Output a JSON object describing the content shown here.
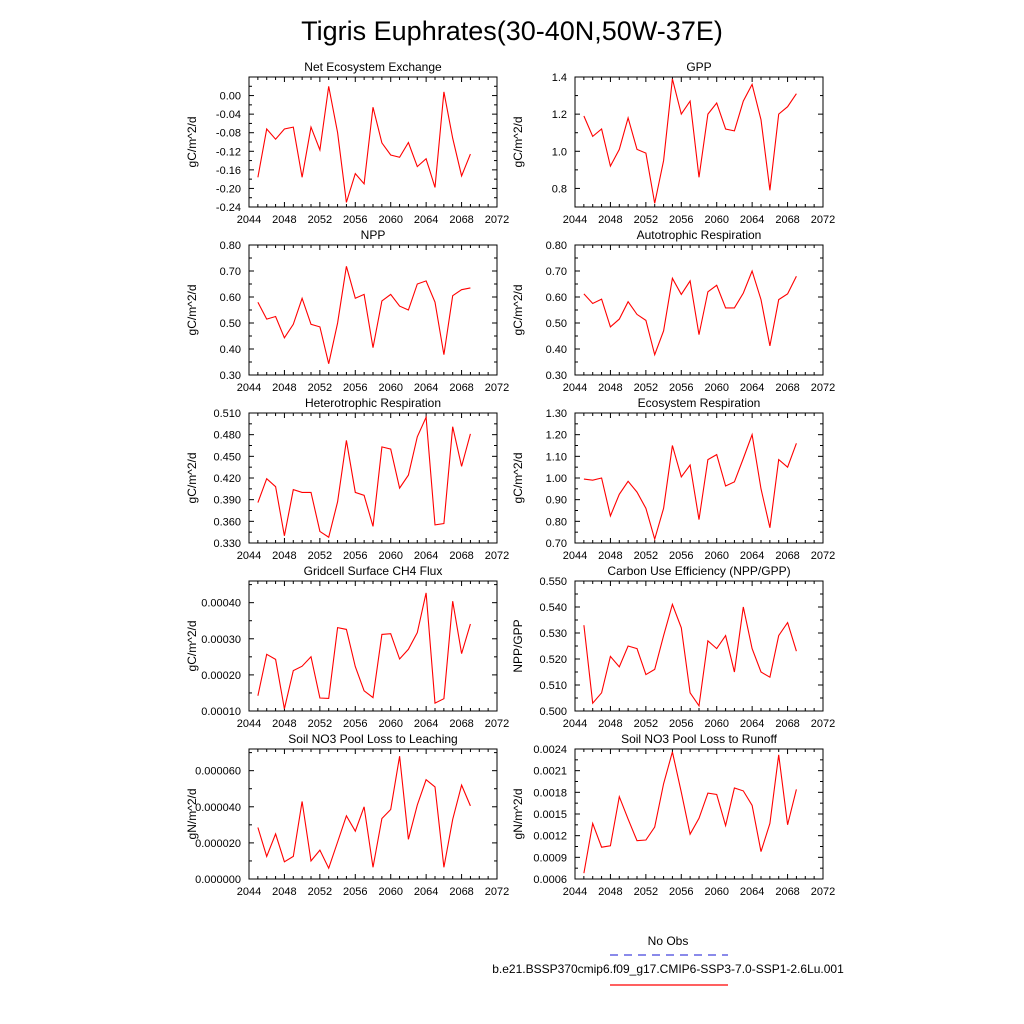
{
  "title": "Tigris Euphrates(30-40N,50W-37E)",
  "colors": {
    "model_line": "#ff0000",
    "obs_line": "#4444dd",
    "axes": "#000000",
    "background": "#ffffff"
  },
  "legend": {
    "obs_label": "No Obs",
    "model_label": "b.e21.BSSP370cmip6.f09_g17.CMIP6-SSP3-7.0-SSP1-2.6Lu.001",
    "placement": "bottom-right"
  },
  "chart_data": [
    {
      "type": "line",
      "title": "Net Ecosystem Exchange",
      "ylabel": "gC/m^2/d",
      "xlabel": "",
      "xlim": [
        2044,
        2072
      ],
      "ylim": [
        -0.24,
        0.04
      ],
      "xticks": [
        2044,
        2048,
        2052,
        2056,
        2060,
        2064,
        2068,
        2072
      ],
      "yticks": [
        -0.24,
        -0.2,
        -0.16,
        -0.12,
        -0.08,
        -0.04,
        0.0
      ],
      "yticklabels": [
        "-0.24",
        "-0.20",
        "-0.16",
        "-0.12",
        "-0.08",
        "-0.04",
        "0.00"
      ],
      "grid": false,
      "x": [
        2045,
        2046,
        2047,
        2048,
        2049,
        2050,
        2051,
        2052,
        2053,
        2054,
        2055,
        2056,
        2057,
        2058,
        2059,
        2060,
        2061,
        2062,
        2063,
        2064,
        2065,
        2066,
        2067,
        2068,
        2069
      ],
      "values": [
        -0.176,
        -0.072,
        -0.094,
        -0.072,
        -0.068,
        -0.176,
        -0.068,
        -0.117,
        0.02,
        -0.08,
        -0.23,
        -0.168,
        -0.19,
        -0.025,
        -0.102,
        -0.128,
        -0.133,
        -0.101,
        -0.153,
        -0.136,
        -0.198,
        0.008,
        -0.092,
        -0.173,
        -0.126
      ]
    },
    {
      "type": "line",
      "title": "GPP",
      "ylabel": "gC/m^2/d",
      "xlabel": "",
      "xlim": [
        2044,
        2072
      ],
      "ylim": [
        0.7,
        1.4
      ],
      "xticks": [
        2044,
        2048,
        2052,
        2056,
        2060,
        2064,
        2068,
        2072
      ],
      "yticks": [
        0.8,
        1.0,
        1.2,
        1.4
      ],
      "yticklabels": [
        "0.8",
        "1.0",
        "1.2",
        "1.4"
      ],
      "grid": false,
      "x": [
        2045,
        2046,
        2047,
        2048,
        2049,
        2050,
        2051,
        2052,
        2053,
        2054,
        2055,
        2056,
        2057,
        2058,
        2059,
        2060,
        2061,
        2062,
        2063,
        2064,
        2065,
        2066,
        2067,
        2068,
        2069
      ],
      "values": [
        1.19,
        1.08,
        1.12,
        0.92,
        1.01,
        1.18,
        1.01,
        0.99,
        0.72,
        0.95,
        1.39,
        1.2,
        1.27,
        0.86,
        1.2,
        1.26,
        1.12,
        1.11,
        1.27,
        1.36,
        1.17,
        0.79,
        1.2,
        1.24,
        1.31
      ]
    },
    {
      "type": "line",
      "title": "NPP",
      "ylabel": "gC/m^2/d",
      "xlabel": "",
      "xlim": [
        2044,
        2072
      ],
      "ylim": [
        0.3,
        0.8
      ],
      "xticks": [
        2044,
        2048,
        2052,
        2056,
        2060,
        2064,
        2068,
        2072
      ],
      "yticks": [
        0.3,
        0.4,
        0.5,
        0.6,
        0.7,
        0.8
      ],
      "yticklabels": [
        "0.30",
        "0.40",
        "0.50",
        "0.60",
        "0.70",
        "0.80"
      ],
      "grid": false,
      "x": [
        2045,
        2046,
        2047,
        2048,
        2049,
        2050,
        2051,
        2052,
        2053,
        2054,
        2055,
        2056,
        2057,
        2058,
        2059,
        2060,
        2061,
        2062,
        2063,
        2064,
        2065,
        2066,
        2067,
        2068,
        2069
      ],
      "values": [
        0.58,
        0.515,
        0.525,
        0.443,
        0.495,
        0.595,
        0.495,
        0.485,
        0.343,
        0.5,
        0.718,
        0.595,
        0.61,
        0.405,
        0.585,
        0.61,
        0.565,
        0.55,
        0.65,
        0.662,
        0.58,
        0.378,
        0.605,
        0.628,
        0.635
      ]
    },
    {
      "type": "line",
      "title": "Autotrophic Respiration",
      "ylabel": "gC/m^2/d",
      "xlabel": "",
      "xlim": [
        2044,
        2072
      ],
      "ylim": [
        0.3,
        0.8
      ],
      "xticks": [
        2044,
        2048,
        2052,
        2056,
        2060,
        2064,
        2068,
        2072
      ],
      "yticks": [
        0.3,
        0.4,
        0.5,
        0.6,
        0.7,
        0.8
      ],
      "yticklabels": [
        "0.30",
        "0.40",
        "0.50",
        "0.60",
        "0.70",
        "0.80"
      ],
      "grid": false,
      "x": [
        2045,
        2046,
        2047,
        2048,
        2049,
        2050,
        2051,
        2052,
        2053,
        2054,
        2055,
        2056,
        2057,
        2058,
        2059,
        2060,
        2061,
        2062,
        2063,
        2064,
        2065,
        2066,
        2067,
        2068,
        2069
      ],
      "values": [
        0.612,
        0.575,
        0.592,
        0.485,
        0.515,
        0.582,
        0.533,
        0.51,
        0.378,
        0.47,
        0.672,
        0.61,
        0.662,
        0.455,
        0.62,
        0.645,
        0.558,
        0.558,
        0.615,
        0.7,
        0.59,
        0.412,
        0.59,
        0.612,
        0.68
      ]
    },
    {
      "type": "line",
      "title": "Heterotrophic Respiration",
      "ylabel": "gC/m^2/d",
      "xlabel": "",
      "xlim": [
        2044,
        2072
      ],
      "ylim": [
        0.33,
        0.51
      ],
      "xticks": [
        2044,
        2048,
        2052,
        2056,
        2060,
        2064,
        2068,
        2072
      ],
      "yticks": [
        0.33,
        0.36,
        0.39,
        0.42,
        0.45,
        0.48,
        0.51
      ],
      "yticklabels": [
        "0.330",
        "0.360",
        "0.390",
        "0.420",
        "0.450",
        "0.480",
        "0.510"
      ],
      "grid": false,
      "x": [
        2045,
        2046,
        2047,
        2048,
        2049,
        2050,
        2051,
        2052,
        2053,
        2054,
        2055,
        2056,
        2057,
        2058,
        2059,
        2060,
        2061,
        2062,
        2063,
        2064,
        2065,
        2066,
        2067,
        2068,
        2069
      ],
      "values": [
        0.386,
        0.419,
        0.408,
        0.34,
        0.404,
        0.4,
        0.4,
        0.346,
        0.338,
        0.387,
        0.472,
        0.4,
        0.396,
        0.353,
        0.463,
        0.46,
        0.406,
        0.424,
        0.477,
        0.504,
        0.355,
        0.357,
        0.491,
        0.436,
        0.481
      ]
    },
    {
      "type": "line",
      "title": "Ecosystem Respiration",
      "ylabel": "gC/m^2/d",
      "xlabel": "",
      "xlim": [
        2044,
        2072
      ],
      "ylim": [
        0.7,
        1.3
      ],
      "xticks": [
        2044,
        2048,
        2052,
        2056,
        2060,
        2064,
        2068,
        2072
      ],
      "yticks": [
        0.7,
        0.8,
        0.9,
        1.0,
        1.1,
        1.2,
        1.3
      ],
      "yticklabels": [
        "0.70",
        "0.80",
        "0.90",
        "1.00",
        "1.10",
        "1.20",
        "1.30"
      ],
      "grid": false,
      "x": [
        2045,
        2046,
        2047,
        2048,
        2049,
        2050,
        2051,
        2052,
        2053,
        2054,
        2055,
        2056,
        2057,
        2058,
        2059,
        2060,
        2061,
        2062,
        2063,
        2064,
        2065,
        2066,
        2067,
        2068,
        2069
      ],
      "values": [
        0.995,
        0.99,
        1.0,
        0.825,
        0.925,
        0.985,
        0.935,
        0.86,
        0.718,
        0.86,
        1.15,
        1.005,
        1.06,
        0.808,
        1.085,
        1.108,
        0.963,
        0.982,
        1.09,
        1.2,
        0.95,
        0.77,
        1.085,
        1.05,
        1.16
      ]
    },
    {
      "type": "line",
      "title": "Gridcell Surface CH4 Flux",
      "ylabel": "gC/m^2/d",
      "xlabel": "",
      "xlim": [
        2044,
        2072
      ],
      "ylim": [
        0.0001,
        0.00046
      ],
      "xticks": [
        2044,
        2048,
        2052,
        2056,
        2060,
        2064,
        2068,
        2072
      ],
      "yticks": [
        0.0001,
        0.0002,
        0.0003,
        0.0004
      ],
      "yticklabels": [
        "0.00010",
        "0.00020",
        "0.00030",
        "0.00040"
      ],
      "grid": false,
      "x": [
        2045,
        2046,
        2047,
        2048,
        2049,
        2050,
        2051,
        2052,
        2053,
        2054,
        2055,
        2056,
        2057,
        2058,
        2059,
        2060,
        2061,
        2062,
        2063,
        2064,
        2065,
        2066,
        2067,
        2068,
        2069
      ],
      "values": [
        0.000142,
        0.000257,
        0.000243,
        0.000106,
        0.000212,
        0.000224,
        0.00025,
        0.000136,
        0.000135,
        0.000331,
        0.000326,
        0.000223,
        0.000156,
        0.000137,
        0.000312,
        0.000314,
        0.000244,
        0.000271,
        0.000317,
        0.000427,
        0.000122,
        0.000134,
        0.000404,
        0.000259,
        0.000341
      ]
    },
    {
      "type": "line",
      "title": "Carbon Use Efficiency (NPP/GPP)",
      "ylabel": "NPP/GPP",
      "xlabel": "",
      "xlim": [
        2044,
        2072
      ],
      "ylim": [
        0.5,
        0.55
      ],
      "xticks": [
        2044,
        2048,
        2052,
        2056,
        2060,
        2064,
        2068,
        2072
      ],
      "yticks": [
        0.5,
        0.51,
        0.52,
        0.53,
        0.54,
        0.55
      ],
      "yticklabels": [
        "0.500",
        "0.510",
        "0.520",
        "0.530",
        "0.540",
        "0.550"
      ],
      "grid": false,
      "x": [
        2045,
        2046,
        2047,
        2048,
        2049,
        2050,
        2051,
        2052,
        2053,
        2054,
        2055,
        2056,
        2057,
        2058,
        2059,
        2060,
        2061,
        2062,
        2063,
        2064,
        2065,
        2066,
        2067,
        2068,
        2069
      ],
      "values": [
        0.533,
        0.503,
        0.507,
        0.521,
        0.517,
        0.525,
        0.524,
        0.514,
        0.516,
        0.529,
        0.541,
        0.532,
        0.507,
        0.502,
        0.527,
        0.524,
        0.529,
        0.515,
        0.54,
        0.524,
        0.515,
        0.513,
        0.529,
        0.534,
        0.523
      ]
    },
    {
      "type": "line",
      "title": "Soil NO3 Pool Loss to Leaching",
      "ylabel": "gN/m^2/d",
      "xlabel": "",
      "xlim": [
        2044,
        2072
      ],
      "ylim": [
        0.0,
        7.2e-05
      ],
      "xticks": [
        2044,
        2048,
        2052,
        2056,
        2060,
        2064,
        2068,
        2072
      ],
      "yticks": [
        0.0,
        2e-05,
        4e-05,
        6e-05
      ],
      "yticklabels": [
        "0.000000",
        "0.000020",
        "0.000040",
        "0.000060"
      ],
      "grid": false,
      "x": [
        2045,
        2046,
        2047,
        2048,
        2049,
        2050,
        2051,
        2052,
        2053,
        2054,
        2055,
        2056,
        2057,
        2058,
        2059,
        2060,
        2061,
        2062,
        2063,
        2064,
        2065,
        2066,
        2067,
        2068,
        2069
      ],
      "values": [
        2.85e-05,
        1.25e-05,
        2.5e-05,
        9.5e-06,
        1.25e-05,
        4.3e-05,
        1e-05,
        1.6e-05,
        6e-06,
        2.05e-05,
        3.5e-05,
        2.65e-05,
        4e-05,
        6.5e-06,
        3.35e-05,
        3.85e-05,
        6.8e-05,
        2.2e-05,
        4.1e-05,
        5.5e-05,
        5.1e-05,
        6.5e-06,
        3.3e-05,
        5.2e-05,
        4.05e-05
      ]
    },
    {
      "type": "line",
      "title": "Soil NO3 Pool Loss to Runoff",
      "ylabel": "gN/m^2/d",
      "xlabel": "",
      "xlim": [
        2044,
        2072
      ],
      "ylim": [
        0.0006,
        0.0024
      ],
      "xticks": [
        2044,
        2048,
        2052,
        2056,
        2060,
        2064,
        2068,
        2072
      ],
      "yticks": [
        0.0006,
        0.0009,
        0.0012,
        0.0015,
        0.0018,
        0.0021,
        0.0024
      ],
      "yticklabels": [
        "0.0006",
        "0.0009",
        "0.0012",
        "0.0015",
        "0.0018",
        "0.0021",
        "0.0024"
      ],
      "grid": false,
      "x": [
        2045,
        2046,
        2047,
        2048,
        2049,
        2050,
        2051,
        2052,
        2053,
        2054,
        2055,
        2056,
        2057,
        2058,
        2059,
        2060,
        2061,
        2062,
        2063,
        2064,
        2065,
        2066,
        2067,
        2068,
        2069
      ],
      "values": [
        0.00068,
        0.00137,
        0.00104,
        0.00106,
        0.00174,
        0.00143,
        0.00113,
        0.00114,
        0.00132,
        0.00192,
        0.00236,
        0.0018,
        0.00122,
        0.00144,
        0.00179,
        0.00177,
        0.00134,
        0.00186,
        0.00182,
        0.00162,
        0.00098,
        0.00137,
        0.00232,
        0.00135,
        0.00184
      ]
    }
  ]
}
